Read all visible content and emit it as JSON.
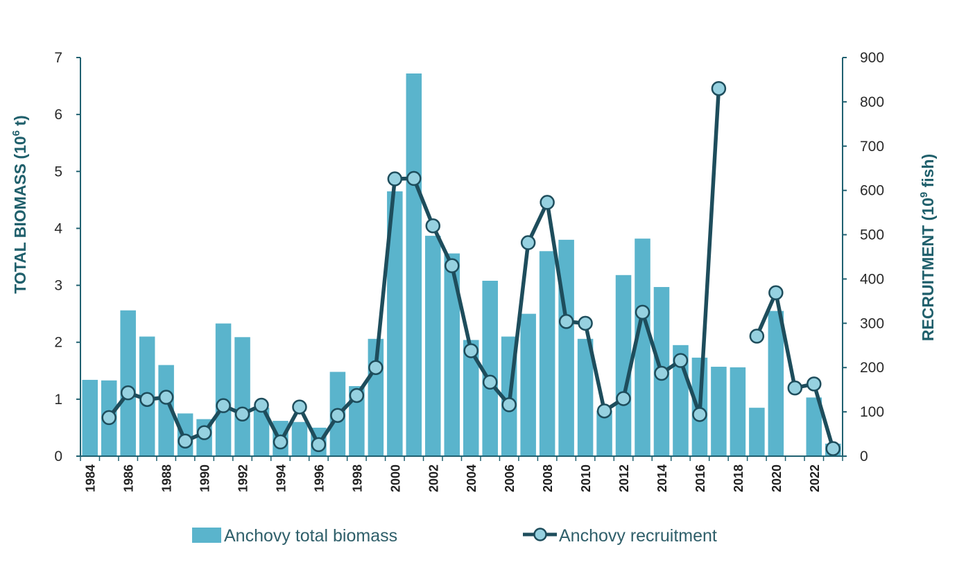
{
  "chart_data": {
    "type": "bar+line",
    "categories": [
      1984,
      1985,
      1986,
      1987,
      1988,
      1989,
      1990,
      1991,
      1992,
      1993,
      1994,
      1995,
      1996,
      1997,
      1998,
      1999,
      2000,
      2001,
      2002,
      2003,
      2004,
      2005,
      2006,
      2007,
      2008,
      2009,
      2010,
      2011,
      2012,
      2013,
      2014,
      2015,
      2016,
      2017,
      2018,
      2019,
      2020,
      2021,
      2022,
      2023
    ],
    "xtick_labels": [
      "1984",
      "1986",
      "1988",
      "1990",
      "1992",
      "1994",
      "1996",
      "1998",
      "2000",
      "2002",
      "2004",
      "2006",
      "2008",
      "2010",
      "2012",
      "2014",
      "2016",
      "2018",
      "2020",
      "2022"
    ],
    "ylabel_left": "TOTAL BIOMASS (10",
    "ylabel_left_sup": "6",
    "ylabel_left_end": " t)",
    "ylabel_right": "RECRUITMENT (10",
    "ylabel_right_sup": "9",
    "ylabel_right_end": " fish)",
    "ylim_left": [
      0,
      7
    ],
    "ylim_right": [
      0,
      900
    ],
    "yticks_left": [
      "0",
      "1",
      "2",
      "3",
      "4",
      "5",
      "6",
      "7"
    ],
    "yticks_right": [
      "0",
      "100",
      "200",
      "300",
      "400",
      "500",
      "600",
      "700",
      "800",
      "900"
    ],
    "grid": false,
    "legend_position": "bottom",
    "series": [
      {
        "name": "Anchovy total biomass",
        "type": "bar",
        "axis": "left",
        "color": "#5ab4cc",
        "values": [
          1.34,
          1.33,
          2.56,
          2.1,
          1.6,
          0.75,
          0.65,
          2.33,
          2.09,
          0.85,
          0.62,
          0.6,
          0.5,
          1.48,
          1.23,
          2.06,
          4.65,
          6.72,
          3.87,
          3.56,
          2.04,
          3.08,
          2.1,
          2.5,
          3.6,
          3.8,
          2.06,
          0.8,
          3.18,
          3.82,
          2.97,
          1.95,
          1.73,
          1.57,
          1.56,
          0.85,
          2.55,
          null,
          1.03,
          0.22
        ]
      },
      {
        "name": "Anchovy recruitment",
        "type": "line",
        "axis": "right",
        "color": "#1e4d5c",
        "marker_color": "#96d1e0",
        "values": [
          null,
          87,
          143,
          128,
          133,
          34,
          53,
          114,
          95,
          115,
          32,
          111,
          26,
          92,
          137,
          200,
          626,
          627,
          520,
          430,
          238,
          167,
          116,
          482,
          573,
          304,
          300,
          102,
          130,
          325,
          187,
          216,
          94,
          830,
          null,
          271,
          369,
          154,
          163,
          17
        ]
      }
    ]
  }
}
